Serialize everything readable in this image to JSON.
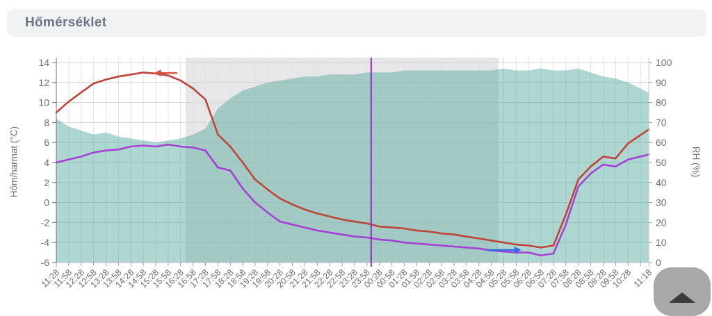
{
  "header": {
    "title": "Hőmérséklet"
  },
  "chart_data": {
    "type": "line",
    "title": "Hőmérséklet",
    "x_tick_labels": [
      "11:28",
      "11:58",
      "12:28",
      "12:58",
      "13:28",
      "13:58",
      "14:28",
      "14:58",
      "15:28",
      "15:58",
      "16:28",
      "16:58",
      "17:28",
      "17:58",
      "18:28",
      "18:58",
      "19:28",
      "19:58",
      "20:28",
      "20:58",
      "21:28",
      "21:58",
      "22:28",
      "22:58",
      "23:28",
      "23:58",
      "00:28",
      "00:58",
      "01:28",
      "01:58",
      "02:28",
      "02:58",
      "03:28",
      "03:58",
      "04:28",
      "04:58",
      "05:28",
      "05:58",
      "06:28",
      "06:58",
      "07:28",
      "07:58",
      "08:28",
      "08:58",
      "09:28",
      "09:58",
      "10:28",
      "11:18"
    ],
    "y_left": {
      "label": "Hőm/harmat (°C)",
      "min": -6,
      "max": 14,
      "ticks": [
        14,
        12,
        10,
        8,
        6,
        4,
        2,
        0,
        -2,
        -4,
        -6
      ]
    },
    "y_right": {
      "label": "RH (%)",
      "min": 0,
      "max": 100,
      "ticks": [
        100,
        90,
        80,
        70,
        60,
        50,
        40,
        30,
        20,
        10,
        0
      ]
    },
    "series": [
      {
        "name": "relative_humidity",
        "type": "area",
        "axis": "right",
        "color": "rgba(77,166,152,0.45)",
        "values": [
          72,
          68,
          66,
          64,
          65,
          63,
          62,
          61,
          60,
          61,
          62,
          64,
          67,
          77,
          82,
          86,
          88,
          90,
          91,
          92,
          93,
          93,
          94,
          94,
          94,
          95,
          95,
          95,
          96,
          96,
          96,
          96,
          96,
          96,
          96,
          96,
          97,
          96,
          96,
          97,
          96,
          96,
          97,
          95,
          93,
          92,
          90,
          85
        ]
      },
      {
        "name": "temperature",
        "type": "line",
        "axis": "left",
        "color": "#bf4438",
        "values": [
          9.0,
          10.1,
          11.0,
          11.9,
          12.3,
          12.6,
          12.8,
          13.0,
          12.9,
          12.7,
          12.2,
          11.4,
          10.3,
          6.8,
          5.6,
          4.0,
          2.3,
          1.3,
          0.4,
          -0.2,
          -0.7,
          -1.1,
          -1.4,
          -1.7,
          -1.9,
          -2.1,
          -2.4,
          -2.5,
          -2.6,
          -2.8,
          -2.9,
          -3.1,
          -3.2,
          -3.4,
          -3.6,
          -3.8,
          -4.0,
          -4.2,
          -4.3,
          -4.5,
          -4.3,
          -1.2,
          2.3,
          3.6,
          4.6,
          4.4,
          5.9,
          7.3
        ]
      },
      {
        "name": "dew_point",
        "type": "line",
        "axis": "left",
        "color": "#a440d4",
        "values": [
          4.0,
          4.3,
          4.6,
          5.0,
          5.2,
          5.3,
          5.6,
          5.7,
          5.6,
          5.8,
          5.6,
          5.5,
          5.2,
          3.5,
          3.2,
          1.4,
          0.0,
          -1.0,
          -1.9,
          -2.2,
          -2.5,
          -2.8,
          -3.0,
          -3.2,
          -3.4,
          -3.5,
          -3.7,
          -3.8,
          -4.0,
          -4.1,
          -4.2,
          -4.3,
          -4.4,
          -4.5,
          -4.6,
          -4.8,
          -4.9,
          -5.0,
          -5.0,
          -5.3,
          -5.1,
          -2.2,
          1.6,
          2.9,
          3.8,
          3.6,
          4.3,
          4.8
        ]
      }
    ],
    "night_band": {
      "from": "16:40",
      "to": "05:15",
      "color": "#e7e6e8"
    },
    "vertical_line": {
      "time": "00:08",
      "color": "#8e2ac8"
    },
    "annotations": [
      {
        "name": "red-left-arrow",
        "direction": "left",
        "color": "#dd5044",
        "x_pct_from": 20.4,
        "x_pct_to": 16.5,
        "y_value": 12.95
      },
      {
        "name": "blue-right-arrow",
        "direction": "right",
        "color": "#2e6de4",
        "x_pct_from": 72.7,
        "x_pct_to": 78.5,
        "y_value": -4.75
      }
    ],
    "grid": true,
    "legend": "none"
  },
  "scroll_top_button": {
    "icon": "chevron-up"
  }
}
